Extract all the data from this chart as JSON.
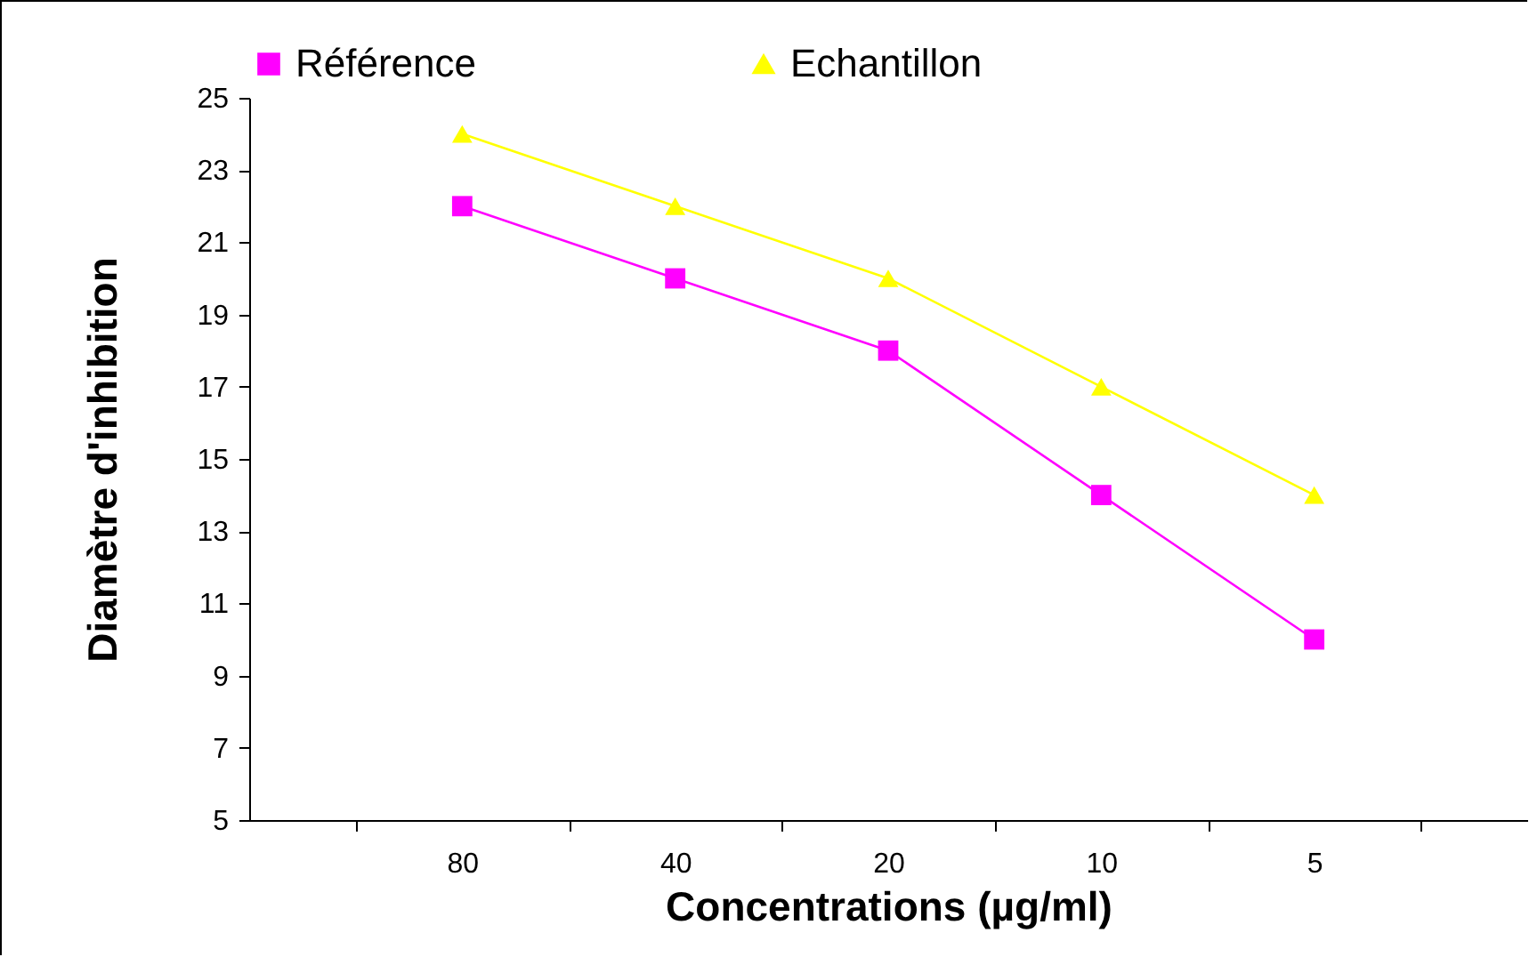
{
  "chart_data": {
    "type": "line",
    "xlabel": "Concentrations (µg/ml)",
    "ylabel": "Diamètre d'inhibition",
    "categories": [
      "80",
      "40",
      "20",
      "10",
      "5"
    ],
    "series": [
      {
        "name": "Référence",
        "color": "#ff00ff",
        "marker": "square",
        "values": [
          22,
          20,
          18,
          14,
          10
        ]
      },
      {
        "name": "Echantillon",
        "color": "#ffff00",
        "marker": "triangle",
        "values": [
          24,
          22,
          20,
          17,
          14
        ]
      }
    ],
    "ylim": [
      5,
      25
    ],
    "yticks": [
      5,
      7,
      9,
      11,
      13,
      15,
      17,
      19,
      21,
      23,
      25
    ],
    "grid": false,
    "legend": "top",
    "line_style": "solid"
  }
}
